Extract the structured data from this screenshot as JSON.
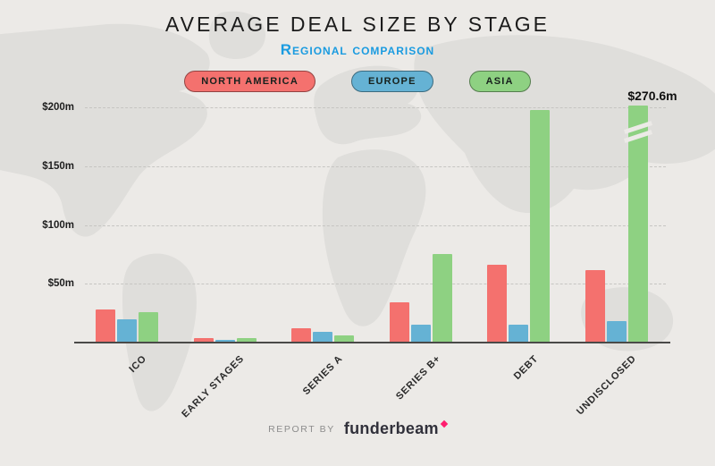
{
  "header": {
    "title": "AVERAGE DEAL SIZE BY STAGE",
    "subtitle": "Regional comparison"
  },
  "chart_data": {
    "type": "bar",
    "title": "AVERAGE DEAL SIZE BY STAGE",
    "subtitle": "Regional comparison",
    "unit": "$m",
    "categories": [
      "ICO",
      "EARLY STAGES",
      "SERIES A",
      "SERIES B+",
      "DEBT",
      "UNDISCLOSED"
    ],
    "series": [
      {
        "name": "NORTH AMERICA",
        "color": "#f4716e",
        "values": [
          28,
          4,
          12,
          34,
          66,
          62
        ]
      },
      {
        "name": "EUROPE",
        "color": "#65b2d4",
        "values": [
          20,
          2,
          9,
          15,
          15,
          18
        ]
      },
      {
        "name": "ASIA",
        "color": "#8ed182",
        "values": [
          26,
          4,
          6,
          75,
          198,
          270.6
        ]
      }
    ],
    "ylim": [
      0,
      200
    ],
    "yticks": [
      "$200m",
      "$150m",
      "$100m",
      "$50m"
    ],
    "grid": "dashed horizontal",
    "legend_position": "top center",
    "annotation": {
      "text": "$270.6m",
      "series": "ASIA",
      "category": "UNDISCLOSED"
    },
    "broken_bar": {
      "series": "ASIA",
      "category": "UNDISCLOSED",
      "actual_value": 270.6
    }
  },
  "footer": {
    "report_by": "REPORT BY",
    "brand": "funderbeam"
  },
  "colors": {
    "background": "#eceae7",
    "map": "#dfdedb",
    "subtitle_blue": "#1a9be0",
    "axis": "#4a4a48",
    "brand_pink": "#ff1d6e"
  }
}
